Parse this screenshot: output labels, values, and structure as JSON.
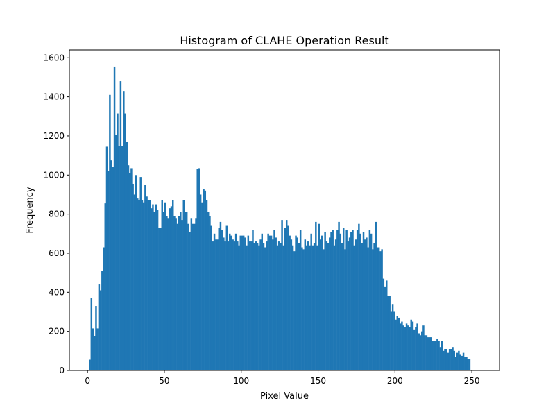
{
  "chart_data": {
    "type": "bar",
    "title": "Histogram of CLAHE Operation Result",
    "xlabel": "Pixel Value",
    "ylabel": "Frequency",
    "xlim": [
      -11.8,
      268
    ],
    "ylim": [
      0,
      1640
    ],
    "x_ticks": [
      0,
      50,
      100,
      150,
      200,
      250
    ],
    "y_ticks": [
      0,
      200,
      400,
      600,
      800,
      1000,
      1200,
      1400,
      1600
    ],
    "bar_color": "#1f77b4",
    "bin_start": 1,
    "bin_width": 1,
    "values": [
      55,
      370,
      215,
      175,
      330,
      215,
      440,
      410,
      510,
      630,
      855,
      1145,
      1020,
      1410,
      1075,
      1040,
      1555,
      1205,
      1315,
      1150,
      1480,
      1150,
      1430,
      1315,
      1170,
      1050,
      1010,
      1035,
      955,
      900,
      1000,
      880,
      870,
      990,
      870,
      860,
      950,
      890,
      870,
      870,
      830,
      850,
      810,
      850,
      820,
      730,
      730,
      870,
      810,
      860,
      790,
      780,
      830,
      840,
      870,
      790,
      780,
      750,
      790,
      810,
      770,
      870,
      810,
      810,
      750,
      710,
      780,
      750,
      750,
      780,
      1030,
      1035,
      900,
      860,
      930,
      920,
      870,
      810,
      790,
      740,
      660,
      700,
      670,
      670,
      730,
      760,
      720,
      680,
      660,
      740,
      660,
      700,
      690,
      670,
      660,
      700,
      660,
      640,
      690,
      690,
      690,
      680,
      640,
      690,
      660,
      660,
      720,
      650,
      660,
      650,
      640,
      670,
      700,
      650,
      630,
      660,
      700,
      690,
      690,
      670,
      720,
      680,
      640,
      660,
      650,
      770,
      640,
      730,
      770,
      740,
      690,
      670,
      640,
      610,
      690,
      680,
      650,
      720,
      630,
      620,
      670,
      640,
      660,
      640,
      700,
      640,
      650,
      760,
      640,
      750,
      670,
      690,
      620,
      710,
      660,
      650,
      680,
      710,
      720,
      640,
      670,
      720,
      760,
      700,
      650,
      730,
      620,
      720,
      660,
      680,
      710,
      720,
      640,
      670,
      720,
      750,
      700,
      650,
      710,
      670,
      680,
      630,
      720,
      700,
      620,
      650,
      760,
      630,
      630,
      610,
      620,
      470,
      430,
      460,
      380,
      380,
      300,
      340,
      300,
      260,
      280,
      270,
      240,
      250,
      230,
      220,
      240,
      230,
      220,
      260,
      250,
      210,
      220,
      240,
      190,
      180,
      200,
      230,
      180,
      180,
      170,
      170,
      170,
      150,
      150,
      150,
      160,
      150,
      120,
      150,
      100,
      110,
      110,
      90,
      110,
      110,
      120,
      100,
      70,
      90,
      100,
      80,
      75,
      90,
      70,
      70,
      60,
      60
    ]
  }
}
